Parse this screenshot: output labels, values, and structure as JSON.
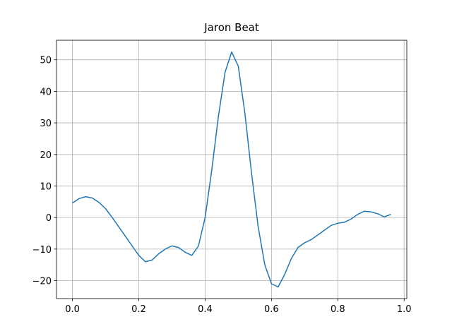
{
  "chart_data": {
    "type": "line",
    "title": "Jaron Beat",
    "x": [
      0,
      0.02,
      0.04,
      0.06,
      0.08,
      0.1,
      0.12,
      0.14,
      0.16,
      0.18,
      0.2,
      0.22,
      0.24,
      0.26,
      0.28,
      0.3,
      0.32,
      0.34,
      0.36,
      0.38,
      0.4,
      0.42,
      0.44,
      0.46,
      0.48,
      0.5,
      0.52,
      0.54,
      0.56,
      0.58,
      0.6,
      0.62,
      0.64,
      0.66,
      0.68,
      0.7,
      0.72,
      0.74,
      0.76,
      0.78,
      0.8,
      0.82,
      0.84,
      0.86,
      0.88,
      0.9,
      0.92,
      0.94,
      0.96
    ],
    "series": [
      {
        "color": "#1f77b4",
        "values": [
          4.6,
          6.0,
          6.6,
          6.2,
          4.8,
          2.8,
          0,
          -3,
          -6,
          -9,
          -12,
          -14,
          -13.5,
          -11.5,
          -10,
          -9,
          -9.5,
          -11,
          -12,
          -9,
          0,
          15,
          32,
          46,
          52.5,
          48,
          33,
          14,
          -3,
          -15,
          -21,
          -22,
          -18,
          -13,
          -9.5,
          -8,
          -7,
          -5.5,
          -4,
          -2.5,
          -1.8,
          -1.5,
          -0.5,
          1,
          2,
          1.8,
          1.2,
          0.2,
          1
        ]
      }
    ],
    "xlim": [
      -0.048,
      1.008
    ],
    "ylim": [
      -25.7,
      56.2
    ],
    "xticks": [
      {
        "value": 0,
        "label": "0.0"
      },
      0.2,
      0.4,
      0.6,
      0.8,
      {
        "value": 1,
        "label": "1.0"
      }
    ],
    "yticks": [
      {
        "value": -20,
        "label": "−20"
      },
      {
        "value": -10,
        "label": "−10"
      },
      0,
      10,
      20,
      30,
      40,
      50
    ],
    "grid": true
  }
}
